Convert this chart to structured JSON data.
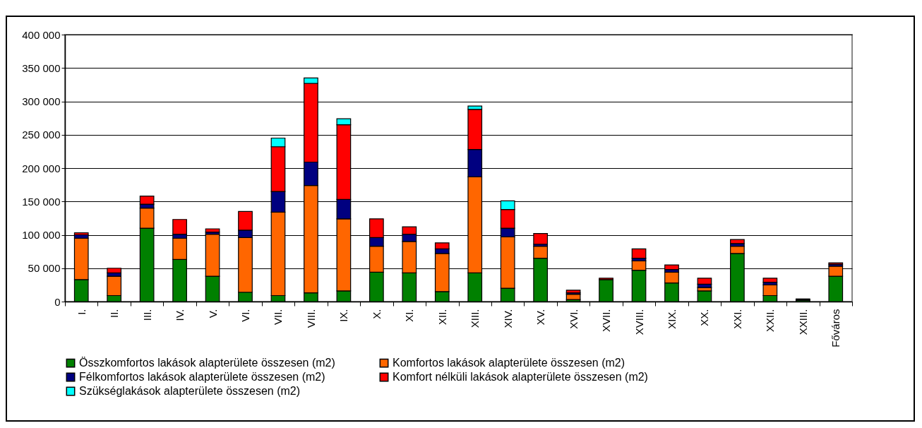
{
  "chart_data": {
    "type": "bar",
    "stacked": true,
    "categories": [
      "I.",
      "II.",
      "III.",
      "IV.",
      "V.",
      "VI.",
      "VII.",
      "VIII.",
      "IX.",
      "X.",
      "XI.",
      "XII.",
      "XIII.",
      "XIV.",
      "XV.",
      "XVI.",
      "XVII.",
      "XVIII.",
      "XIX.",
      "XX.",
      "XXI.",
      "XXII.",
      "XXIII.",
      "Főváros"
    ],
    "series": [
      {
        "name": "Összkomfortos lakások alapterülete összesen (m2)",
        "color": "#008000",
        "values": [
          33000,
          9000,
          110000,
          63000,
          38000,
          14000,
          9000,
          13000,
          16000,
          44000,
          43000,
          15000,
          43000,
          20000,
          65000,
          3000,
          33000,
          47000,
          28000,
          16000,
          72000,
          9000,
          2000,
          38000
        ]
      },
      {
        "name": "Komfortos lakások alapterülete összesen (m2)",
        "color": "#ff6600",
        "values": [
          62000,
          29000,
          30000,
          32000,
          63000,
          82000,
          125000,
          161000,
          108000,
          39000,
          47000,
          57000,
          144000,
          77000,
          18000,
          8000,
          null,
          14000,
          16000,
          5000,
          11000,
          16000,
          null,
          15000
        ]
      },
      {
        "name": "Félkomfortos lakások alapterülete összesen (m2)",
        "color": "#000080",
        "values": [
          5000,
          5000,
          6000,
          6000,
          3000,
          11000,
          31000,
          35000,
          29000,
          13000,
          11000,
          7000,
          41000,
          13000,
          3000,
          2000,
          null,
          4000,
          4000,
          5000,
          4000,
          4000,
          1000,
          3000
        ]
      },
      {
        "name": "Komfort nélküli lakások alapterülete összesen (m2)",
        "color": "#ff0000",
        "values": [
          3000,
          7000,
          12000,
          22000,
          5000,
          28000,
          67000,
          118000,
          112000,
          28000,
          11000,
          9000,
          60000,
          28000,
          16000,
          4000,
          2000,
          14000,
          7000,
          9000,
          6000,
          6000,
          1000,
          2000
        ]
      },
      {
        "name": "Szükséglakások alapterülete összesen (m2)",
        "color": "#00ffff",
        "values": [
          null,
          null,
          null,
          null,
          null,
          null,
          13000,
          8000,
          9000,
          null,
          null,
          null,
          5000,
          13000,
          null,
          null,
          null,
          null,
          null,
          null,
          null,
          null,
          null,
          null
        ]
      }
    ],
    "ylim": [
      0,
      400000
    ],
    "yticks": [
      0,
      {
        "value": 50000,
        "label": "50 000"
      },
      {
        "value": 100000,
        "label": "100 000"
      },
      {
        "value": 150000,
        "label": "150 000"
      },
      {
        "value": 200000,
        "label": "200 000"
      },
      {
        "value": 250000,
        "label": "250 000"
      },
      {
        "value": 300000,
        "label": "300 000"
      },
      {
        "value": 350000,
        "label": "350 000"
      },
      {
        "value": 400000,
        "label": "400 000"
      }
    ],
    "grid": "y",
    "legend": "bottom"
  }
}
